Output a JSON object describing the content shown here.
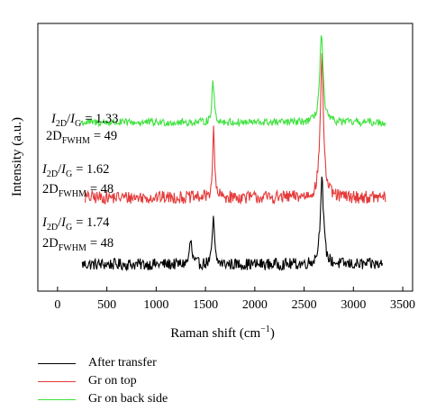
{
  "chart_data": {
    "type": "line",
    "xlabel": "Raman shift (cm",
    "xlabel_sup": "−1",
    "xlabel_tail": ")",
    "ylabel": "Intensity (a.u.)",
    "xlim": [
      -200,
      3600
    ],
    "xticks": [
      0,
      500,
      1000,
      1500,
      2000,
      2500,
      3000,
      3500
    ],
    "y_tick_labels": "none",
    "grid": false,
    "legend_position": "bottom",
    "series": [
      {
        "name": "After transfer",
        "color": "#000000",
        "x_range": [
          250,
          3300
        ],
        "baseline": 0.0,
        "peaks": [
          {
            "x": 1350,
            "height": 0.09,
            "width": 14
          },
          {
            "x": 1580,
            "height": 0.18,
            "width": 12
          },
          {
            "x": 2680,
            "height": 0.32,
            "width": 20
          }
        ],
        "noise": 0.022
      },
      {
        "name": "Gr on top",
        "color": "#e53a3a",
        "x_range": [
          280,
          3330
        ],
        "baseline": 0.25,
        "peaks": [
          {
            "x": 1582,
            "height": 0.25,
            "width": 12
          },
          {
            "x": 2680,
            "height": 0.52,
            "width": 20
          }
        ],
        "noise": 0.024
      },
      {
        "name": "Gr on back side",
        "color": "#3ee23e",
        "x_range": [
          230,
          3330
        ],
        "baseline": 0.53,
        "peaks": [
          {
            "x": 1577,
            "height": 0.15,
            "width": 14
          },
          {
            "x": 2675,
            "height": 0.33,
            "width": 20
          }
        ],
        "noise": 0.014
      }
    ],
    "annotations": [
      {
        "ratio_value": "= 1.33",
        "fwhm_value": "= 49"
      },
      {
        "ratio_value": "= 1.62",
        "fwhm_value": "= 48"
      },
      {
        "ratio_value": "= 1.74",
        "fwhm_value": "= 48"
      }
    ],
    "annotation_labels": {
      "i_main": "I",
      "i_sub_2d": "2D",
      "slash": "/",
      "i_sub_g": "G",
      "fwhm_main": "2D",
      "fwhm_sub": "FWHM"
    }
  }
}
